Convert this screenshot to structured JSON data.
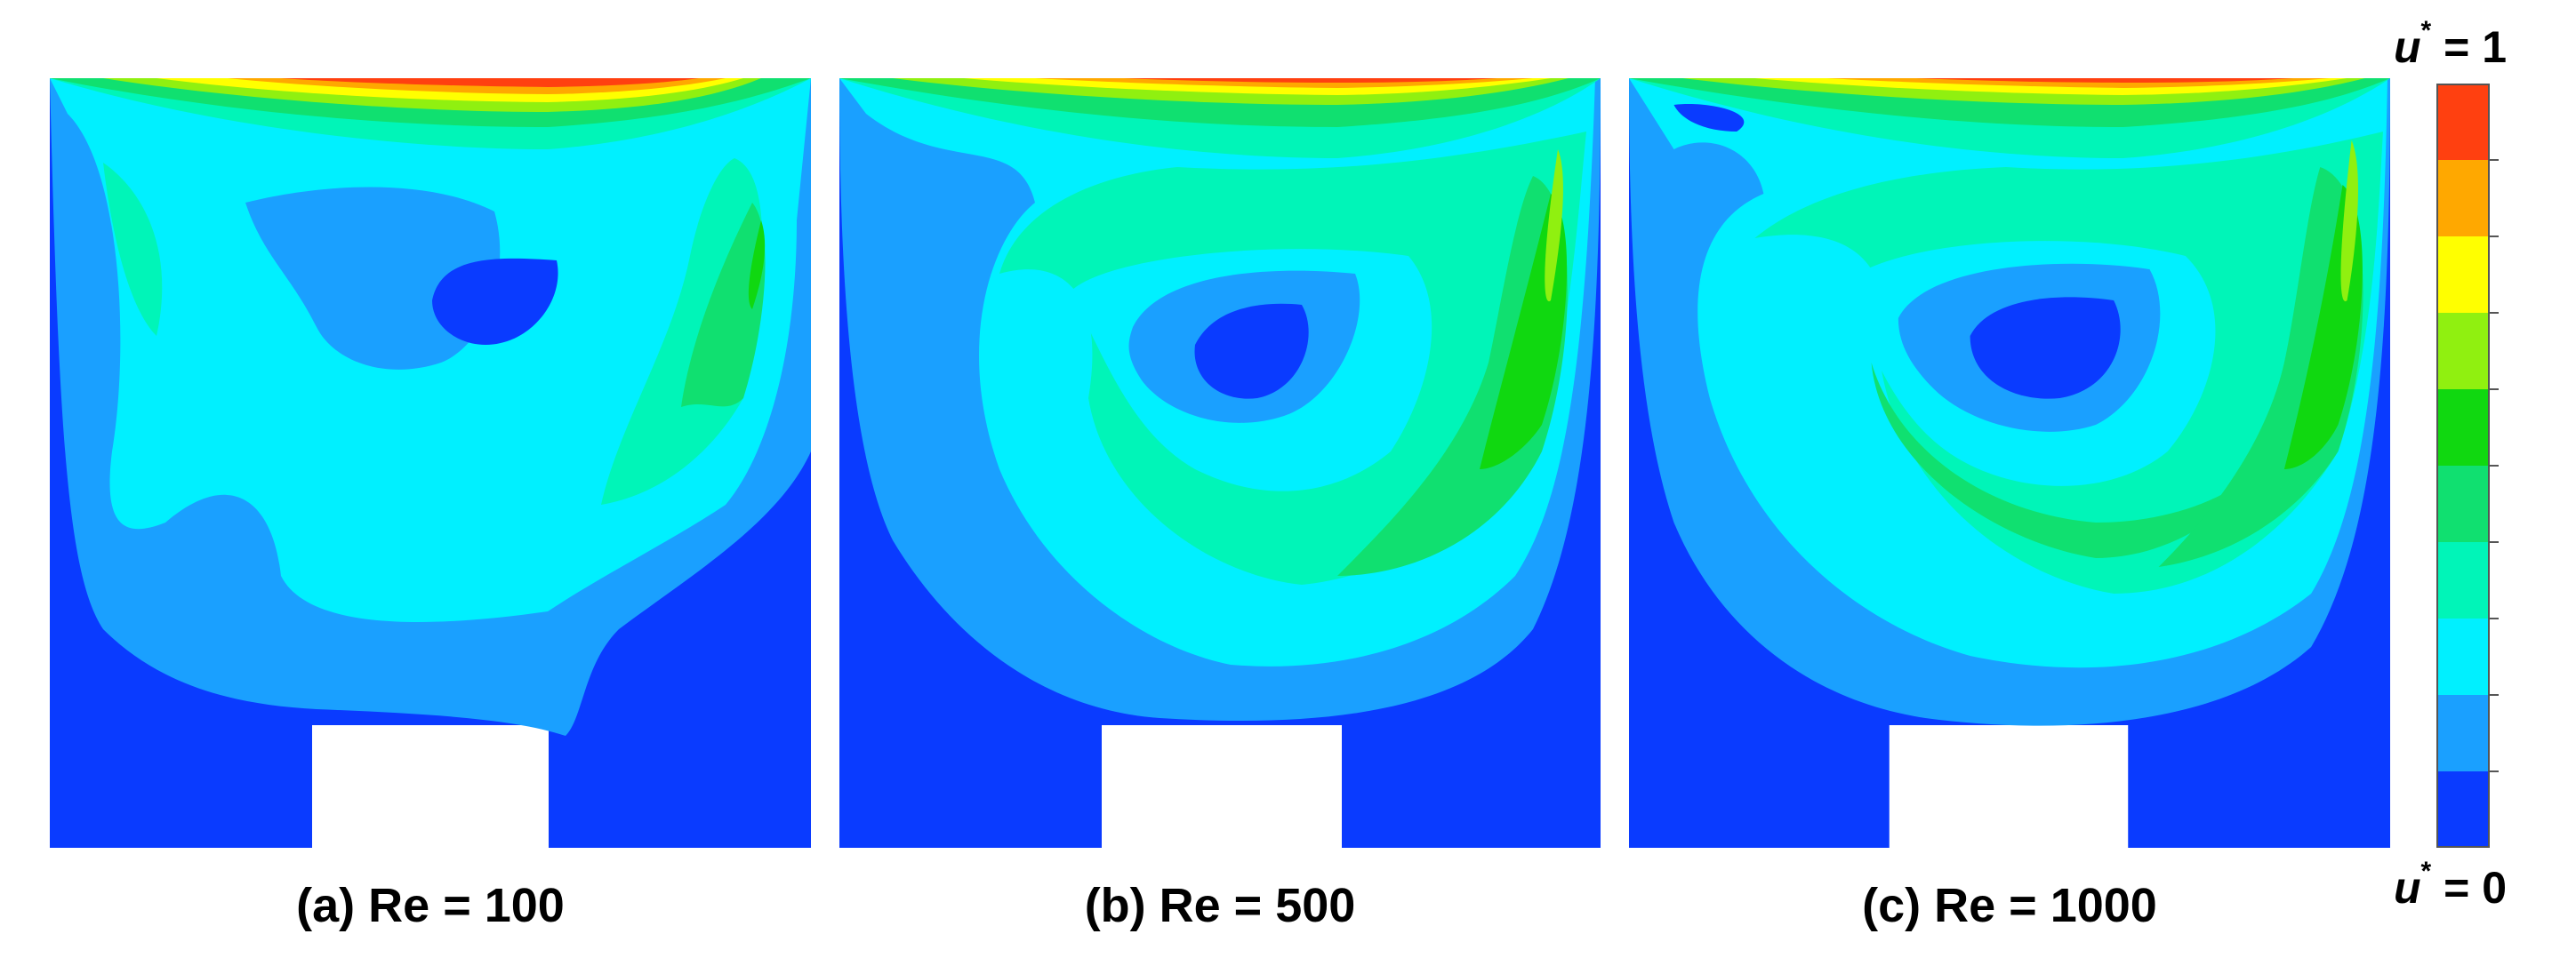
{
  "panels": [
    {
      "caption": "(a) Re = 100"
    },
    {
      "caption": "(b) Re = 500"
    },
    {
      "caption": "(c) Re = 1000"
    }
  ],
  "legend": {
    "var": "u",
    "sup": "*",
    "max_text": " = 1",
    "min_text": " = 0",
    "levels": [
      "#0a3bff",
      "#1aa0ff",
      "#00f0ff",
      "#00f5b8",
      "#10e070",
      "#10d810",
      "#90f010",
      "#ffff00",
      "#ffa800",
      "#ff4010"
    ]
  }
}
